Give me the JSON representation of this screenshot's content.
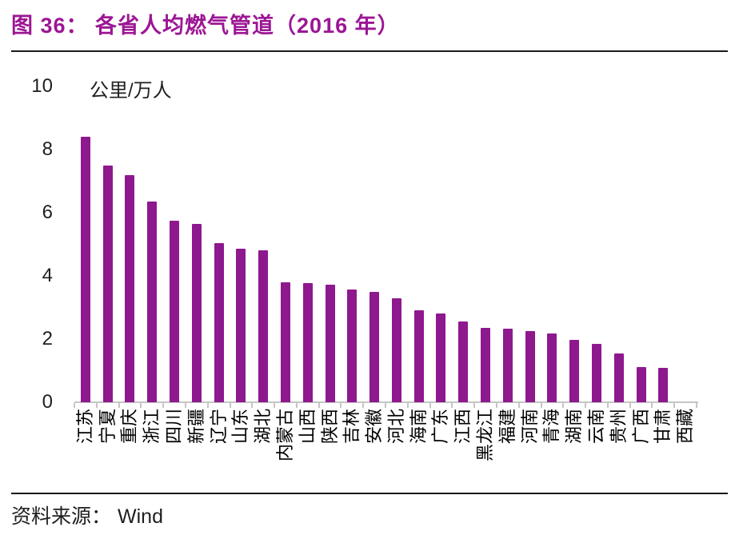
{
  "figure": {
    "title": "图 36： 各省人均燃气管道（2016 年）",
    "source_label": "资料来源：",
    "source_name": "Wind"
  },
  "chart_data": {
    "type": "bar",
    "title": "各省人均燃气管道（2016 年）",
    "xlabel": "",
    "ylabel": "公里/万人",
    "categories": [
      "江苏",
      "宁夏",
      "重庆",
      "浙江",
      "四川",
      "新疆",
      "辽宁",
      "山东",
      "湖北",
      "内蒙古",
      "山西",
      "陕西",
      "吉林",
      "安徽",
      "河北",
      "海南",
      "广东",
      "江西",
      "黑龙江",
      "福建",
      "河南",
      "青海",
      "湖南",
      "云南",
      "贵州",
      "广西",
      "甘肃",
      "西藏"
    ],
    "values": [
      8.4,
      7.5,
      7.2,
      6.35,
      5.75,
      5.65,
      5.05,
      4.85,
      4.8,
      3.8,
      3.78,
      3.72,
      3.58,
      3.5,
      3.3,
      2.9,
      2.8,
      2.55,
      2.36,
      2.33,
      2.25,
      2.18,
      1.97,
      1.85,
      1.55,
      1.12,
      1.1,
      0
    ],
    "ylim": [
      0,
      10
    ],
    "yticks": [
      0,
      2,
      4,
      6,
      8,
      10
    ],
    "grid": false,
    "legend": "none",
    "bar_color": "#8e188e",
    "title_color": "#9c1694",
    "axis_color": "#c6c6c6"
  }
}
